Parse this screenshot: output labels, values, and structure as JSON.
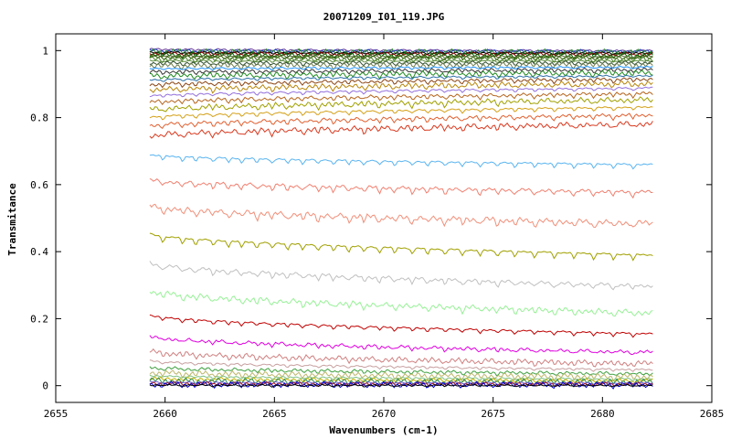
{
  "chart_data": {
    "type": "line",
    "title": "20071209_I01_119.JPG",
    "xlabel": "Wavenumbers (cm-1)",
    "ylabel": "Transmitance",
    "xlim": [
      2655,
      2685
    ],
    "ylim": [
      -0.05,
      1.05
    ],
    "x_ticks": [
      "2655",
      "2660",
      "2665",
      "2670",
      "2675",
      "2680",
      "2685"
    ],
    "y_ticks": [
      "0",
      "0.2",
      "0.4",
      "0.6",
      "0.8",
      "1"
    ],
    "x_range": [
      2659.3,
      2682.3
    ],
    "grid": false,
    "legend": "none",
    "absorption_lines_cm1": [
      2659.9,
      2660.8,
      2661.4,
      2662.2,
      2662.9,
      2663.5,
      2664.2,
      2664.9,
      2665.6,
      2666.3,
      2667.0,
      2667.7,
      2668.4,
      2669.1,
      2669.8,
      2670.5,
      2671.3,
      2672.0,
      2672.8,
      2673.6,
      2674.4,
      2675.2,
      2676.0,
      2676.9,
      2677.8,
      2678.7,
      2679.6,
      2680.5,
      2681.4
    ],
    "series": [
      {
        "start": 1.005,
        "end": 1.0,
        "color": "#6a3d9a"
      },
      {
        "start": 1.0,
        "end": 0.998,
        "color": "#1f3fbf"
      },
      {
        "start": 0.998,
        "end": 0.996,
        "color": "#2e8b2e"
      },
      {
        "start": 0.995,
        "end": 0.993,
        "color": "#000000"
      },
      {
        "start": 0.992,
        "end": 0.99,
        "color": "#8b0000"
      },
      {
        "start": 0.988,
        "end": 0.986,
        "color": "#006400"
      },
      {
        "start": 0.985,
        "end": 0.983,
        "color": "#556b2f"
      },
      {
        "start": 0.981,
        "end": 0.979,
        "color": "#3a5f0b"
      },
      {
        "start": 0.976,
        "end": 0.975,
        "color": "#4b7f2a"
      },
      {
        "start": 0.97,
        "end": 0.97,
        "color": "#5a8a3a"
      },
      {
        "start": 0.963,
        "end": 0.964,
        "color": "#2f4f2f"
      },
      {
        "start": 0.955,
        "end": 0.958,
        "color": "#708050"
      },
      {
        "start": 0.946,
        "end": 0.951,
        "color": "#1e90ff"
      },
      {
        "start": 0.936,
        "end": 0.943,
        "color": "#333333"
      },
      {
        "start": 0.924,
        "end": 0.934,
        "color": "#228b22"
      },
      {
        "start": 0.912,
        "end": 0.925,
        "color": "#2b6fa6"
      },
      {
        "start": 0.898,
        "end": 0.915,
        "color": "#8b4513"
      },
      {
        "start": 0.882,
        "end": 0.902,
        "color": "#b8860b"
      },
      {
        "start": 0.864,
        "end": 0.889,
        "color": "#9370db"
      },
      {
        "start": 0.845,
        "end": 0.872,
        "color": "#b5651d"
      },
      {
        "start": 0.823,
        "end": 0.854,
        "color": "#a0a000"
      },
      {
        "start": 0.8,
        "end": 0.832,
        "color": "#d4a017"
      },
      {
        "start": 0.775,
        "end": 0.808,
        "color": "#e06030"
      },
      {
        "start": 0.745,
        "end": 0.782,
        "color": "#d83a20"
      },
      {
        "start": 0.69,
        "end": 0.66,
        "color": "#5ab4f0"
      },
      {
        "start": 0.615,
        "end": 0.578,
        "color": "#f08070"
      },
      {
        "start": 0.538,
        "end": 0.485,
        "color": "#f0907a"
      },
      {
        "start": 0.455,
        "end": 0.39,
        "color": "#a0a000"
      },
      {
        "start": 0.368,
        "end": 0.298,
        "color": "#c0c0c0"
      },
      {
        "start": 0.285,
        "end": 0.218,
        "color": "#98f098"
      },
      {
        "start": 0.212,
        "end": 0.155,
        "color": "#c00000"
      },
      {
        "start": 0.148,
        "end": 0.1,
        "color": "#e000e0"
      },
      {
        "start": 0.103,
        "end": 0.066,
        "color": "#d08080"
      },
      {
        "start": 0.075,
        "end": 0.048,
        "color": "#c8a0a0"
      },
      {
        "start": 0.055,
        "end": 0.036,
        "color": "#40a040"
      },
      {
        "start": 0.04,
        "end": 0.027,
        "color": "#bdb76b"
      },
      {
        "start": 0.03,
        "end": 0.02,
        "color": "#80c080"
      },
      {
        "start": 0.022,
        "end": 0.015,
        "color": "#c8b400"
      },
      {
        "start": 0.016,
        "end": 0.011,
        "color": "#2e8b57"
      },
      {
        "start": 0.011,
        "end": 0.008,
        "color": "#6a5acd"
      },
      {
        "start": 0.007,
        "end": 0.005,
        "color": "#b22222"
      },
      {
        "start": 0.004,
        "end": 0.003,
        "color": "#0000cd"
      },
      {
        "start": 0.002,
        "end": 0.001,
        "color": "#000000"
      }
    ]
  }
}
